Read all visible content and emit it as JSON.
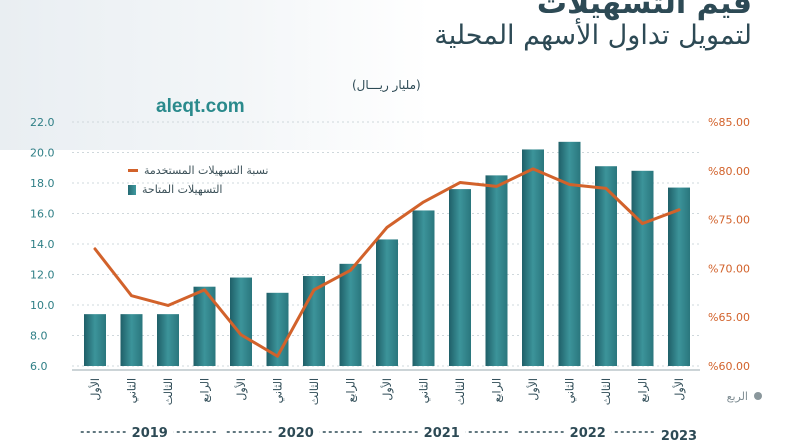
{
  "header": {
    "title_line1": "قيم التسهيلات",
    "title_line2": "لتمويل تداول الأسهم المحلية",
    "unit": "(مليار ريـــال)",
    "brand": "aleqt.com"
  },
  "colors": {
    "bar": "#2f7f86",
    "line": "#d2622b",
    "left_axis": "#2f7f86",
    "right_axis": "#d2622b",
    "text": "#2d4a55"
  },
  "chart_data": {
    "type": "bar",
    "categories": [
      "الأول",
      "الثاني",
      "الثالث",
      "الرابع",
      "الأول",
      "الثاني",
      "الثالث",
      "الرابع",
      "الأول",
      "الثاني",
      "الثالث",
      "الرابع",
      "الأول",
      "الثاني",
      "الثالث",
      "الرابع",
      "الأول"
    ],
    "years": [
      {
        "label": "2019",
        "span": 4
      },
      {
        "label": "2020",
        "span": 4
      },
      {
        "label": "2021",
        "span": 4
      },
      {
        "label": "2022",
        "span": 4
      },
      {
        "label": "2023",
        "span": 1
      }
    ],
    "series": [
      {
        "name": "التسهيلات المتاحة",
        "type": "bar",
        "axis": "left",
        "values": [
          9.4,
          9.4,
          9.4,
          11.2,
          11.8,
          10.8,
          11.9,
          12.7,
          14.3,
          16.2,
          17.6,
          18.5,
          20.2,
          20.7,
          19.1,
          18.8,
          17.7
        ]
      },
      {
        "name": "نسبة التسهيلات المستخدمة",
        "type": "line",
        "axis": "right",
        "values": [
          72.0,
          67.2,
          66.2,
          67.8,
          63.2,
          61.0,
          67.8,
          69.8,
          74.2,
          76.8,
          78.8,
          78.4,
          80.2,
          78.6,
          78.2,
          74.6,
          76.0
        ]
      }
    ],
    "y_left": {
      "ylim": [
        6,
        22
      ],
      "ticks": [
        "22.0",
        "20.0",
        "18.0",
        "16.0",
        "14.0",
        "12.0",
        "10.0",
        "8.0",
        "6.0"
      ]
    },
    "y_right": {
      "ylim": [
        60,
        85
      ],
      "ticks": [
        "%85.00",
        "%80.00",
        "%75.00",
        "%70.00",
        "%65.00",
        "%60.00"
      ]
    },
    "xlabel": "الربع",
    "grid": true,
    "legend": "left"
  }
}
